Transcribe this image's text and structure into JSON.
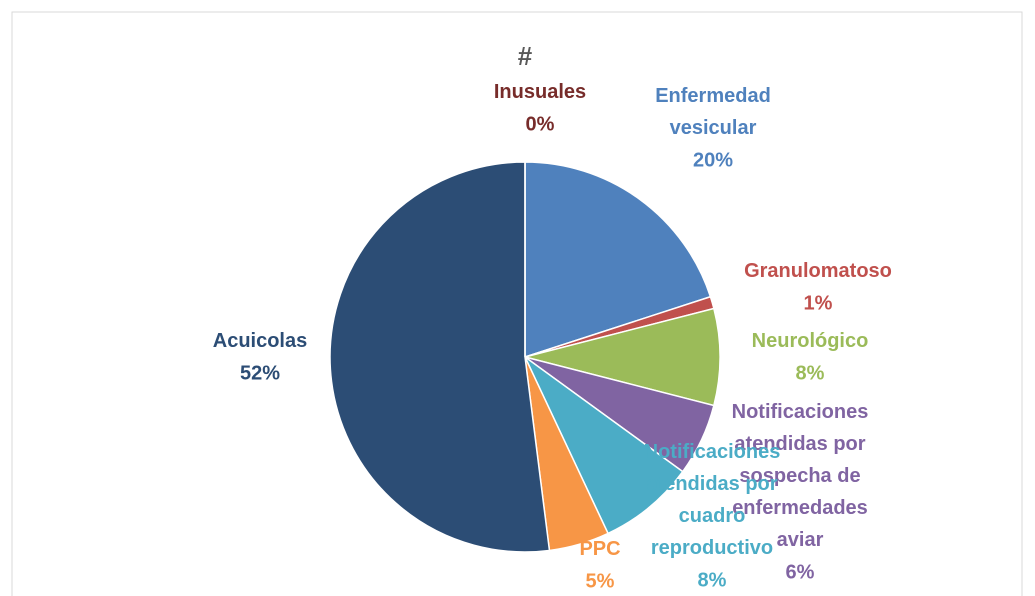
{
  "chart_data": {
    "type": "pie",
    "title": "#",
    "categories": [
      "Enfermedad vesicular",
      "Granulomatoso",
      "Neurológico",
      "Notificaciones atendidas por sospecha de enfermedades aviar",
      "Notificaciones atendidas por cuadro reproductivo",
      "PPC",
      "Acuicolas",
      "Inusuales"
    ],
    "values": [
      20,
      1,
      8,
      6,
      8,
      5,
      52,
      0
    ],
    "value_labels": [
      "20%",
      "1%",
      "8%",
      "6%",
      "8%",
      "5%",
      "52%",
      "0%"
    ],
    "colors": [
      "#4f81bd",
      "#c0504d",
      "#9bbb59",
      "#8064a2",
      "#4bacc6",
      "#f79646",
      "#2c4d75",
      "#772c2a"
    ]
  }
}
